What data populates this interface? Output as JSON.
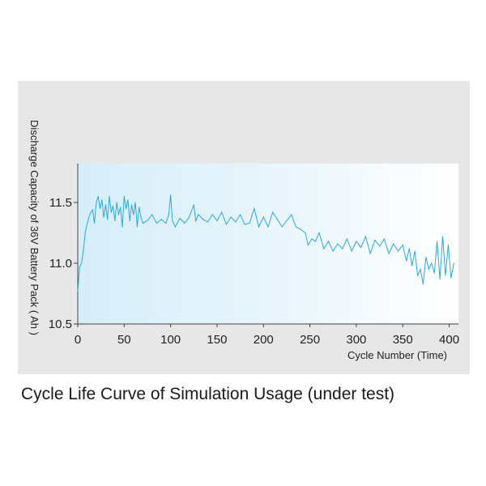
{
  "caption": "Cycle Life Curve of Simulation Usage (under test)",
  "colors": {
    "panel": "#e7e7e7",
    "plot_gradient_start": "#d6eefa",
    "plot_gradient_end": "#ffffff",
    "line": "#2aa8dc",
    "text": "#222222"
  },
  "chart_data": {
    "type": "line",
    "title": "",
    "xlabel": "Cycle Number (Time)",
    "ylabel": "Discharge Capacity of 36V Battery Pack ( Ah )",
    "xlim": [
      0,
      410
    ],
    "ylim": [
      10.5,
      11.82
    ],
    "x_ticks": [
      0,
      50,
      100,
      150,
      200,
      250,
      300,
      350,
      400
    ],
    "x_tick_labels": [
      "0",
      "50",
      "100",
      "150",
      "200",
      "250",
      "300",
      "350",
      "400"
    ],
    "y_ticks": [
      10.5,
      11.0,
      11.5
    ],
    "y_tick_labels": [
      "10.5",
      "11.0",
      "11.5"
    ],
    "grid": false,
    "series": [
      {
        "name": "Discharge Capacity",
        "x": [
          0,
          2,
          4,
          6,
          8,
          10,
          12,
          14,
          16,
          18,
          20,
          22,
          24,
          26,
          28,
          30,
          32,
          34,
          36,
          38,
          40,
          42,
          44,
          46,
          48,
          50,
          52,
          54,
          56,
          58,
          60,
          62,
          64,
          66,
          68,
          70,
          75,
          80,
          85,
          90,
          95,
          98,
          100,
          102,
          105,
          110,
          115,
          120,
          125,
          127,
          130,
          135,
          140,
          145,
          150,
          155,
          160,
          165,
          170,
          175,
          180,
          185,
          190,
          195,
          200,
          205,
          210,
          215,
          220,
          225,
          230,
          235,
          240,
          245,
          248,
          252,
          256,
          260,
          265,
          270,
          275,
          280,
          285,
          290,
          295,
          300,
          305,
          310,
          315,
          320,
          325,
          330,
          335,
          340,
          345,
          350,
          354,
          357,
          360,
          363,
          366,
          369,
          372,
          375,
          378,
          381,
          384,
          387,
          390,
          393,
          396,
          399,
          402,
          405
        ],
        "values": [
          10.77,
          10.97,
          11.0,
          11.1,
          11.25,
          11.32,
          11.38,
          11.42,
          11.44,
          11.33,
          11.5,
          11.55,
          11.45,
          11.52,
          11.38,
          11.48,
          11.36,
          11.55,
          11.42,
          11.47,
          11.35,
          11.5,
          11.4,
          11.46,
          11.3,
          11.55,
          11.45,
          11.52,
          11.35,
          11.48,
          11.4,
          11.5,
          11.3,
          11.46,
          11.38,
          11.33,
          11.35,
          11.4,
          11.33,
          11.36,
          11.33,
          11.4,
          11.56,
          11.35,
          11.3,
          11.37,
          11.33,
          11.38,
          11.48,
          11.35,
          11.4,
          11.36,
          11.34,
          11.4,
          11.35,
          11.42,
          11.32,
          11.38,
          11.34,
          11.4,
          11.32,
          11.33,
          11.45,
          11.3,
          11.38,
          11.3,
          11.42,
          11.36,
          11.3,
          11.35,
          11.4,
          11.3,
          11.28,
          11.25,
          11.15,
          11.2,
          11.18,
          11.25,
          11.12,
          11.18,
          11.1,
          11.16,
          11.12,
          11.2,
          11.1,
          11.18,
          11.13,
          11.22,
          11.08,
          11.19,
          11.14,
          11.2,
          11.08,
          11.16,
          11.1,
          11.15,
          11.02,
          11.12,
          10.98,
          11.1,
          10.9,
          10.95,
          10.83,
          11.05,
          10.95,
          11.0,
          10.92,
          11.18,
          10.87,
          11.22,
          10.9,
          11.15,
          10.88,
          11.0
        ]
      }
    ]
  }
}
